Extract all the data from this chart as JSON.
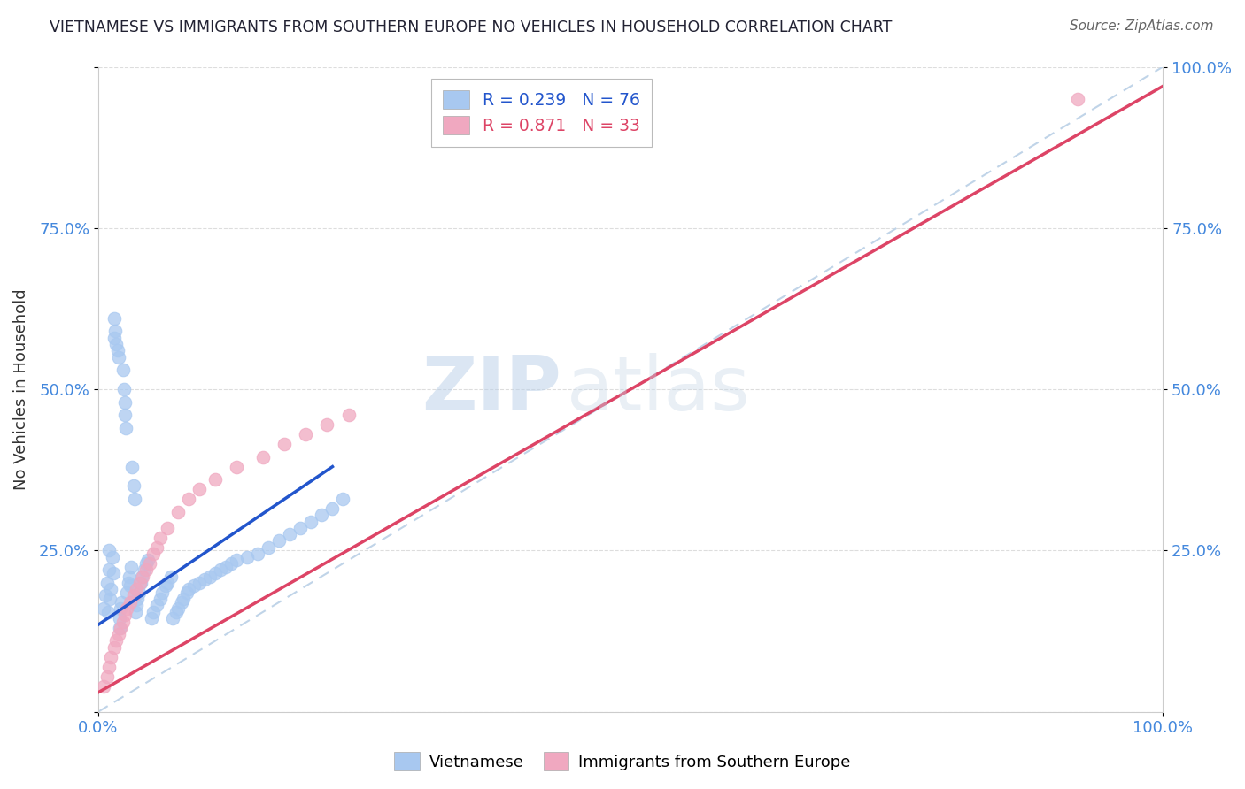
{
  "title": "VIETNAMESE VS IMMIGRANTS FROM SOUTHERN EUROPE NO VEHICLES IN HOUSEHOLD CORRELATION CHART",
  "source": "Source: ZipAtlas.com",
  "ylabel": "No Vehicles in Household",
  "xlim": [
    0,
    1.0
  ],
  "ylim": [
    0,
    1.0
  ],
  "watermark_text": "ZIP",
  "watermark_text2": "atlas",
  "series1_color": "#a8c8f0",
  "series2_color": "#f0a8c0",
  "trendline1_color": "#2255cc",
  "trendline2_color": "#dd4466",
  "diagonal_color": "#c0d4e8",
  "tick_color": "#4488dd",
  "title_color": "#222233",
  "grid_color": "#dddddd",
  "legend_box_color": "#dddddd",
  "viet_x": [
    0.005,
    0.007,
    0.008,
    0.009,
    0.01,
    0.01,
    0.011,
    0.012,
    0.013,
    0.014,
    0.015,
    0.015,
    0.016,
    0.017,
    0.018,
    0.019,
    0.02,
    0.02,
    0.021,
    0.022,
    0.023,
    0.024,
    0.025,
    0.025,
    0.026,
    0.027,
    0.028,
    0.029,
    0.03,
    0.031,
    0.032,
    0.033,
    0.034,
    0.035,
    0.036,
    0.037,
    0.038,
    0.04,
    0.041,
    0.043,
    0.045,
    0.047,
    0.05,
    0.052,
    0.055,
    0.058,
    0.06,
    0.063,
    0.065,
    0.068,
    0.07,
    0.073,
    0.075,
    0.078,
    0.08,
    0.083,
    0.085,
    0.09,
    0.095,
    0.1,
    0.105,
    0.11,
    0.115,
    0.12,
    0.125,
    0.13,
    0.14,
    0.15,
    0.16,
    0.17,
    0.18,
    0.19,
    0.2,
    0.21,
    0.22,
    0.23
  ],
  "viet_y": [
    0.16,
    0.18,
    0.2,
    0.155,
    0.22,
    0.25,
    0.175,
    0.19,
    0.24,
    0.215,
    0.58,
    0.61,
    0.59,
    0.57,
    0.56,
    0.55,
    0.13,
    0.145,
    0.16,
    0.17,
    0.53,
    0.5,
    0.48,
    0.46,
    0.44,
    0.185,
    0.2,
    0.21,
    0.195,
    0.225,
    0.38,
    0.35,
    0.33,
    0.155,
    0.165,
    0.175,
    0.185,
    0.2,
    0.21,
    0.22,
    0.23,
    0.235,
    0.145,
    0.155,
    0.165,
    0.175,
    0.185,
    0.195,
    0.2,
    0.21,
    0.145,
    0.155,
    0.16,
    0.17,
    0.175,
    0.185,
    0.19,
    0.195,
    0.2,
    0.205,
    0.21,
    0.215,
    0.22,
    0.225,
    0.23,
    0.235,
    0.24,
    0.245,
    0.255,
    0.265,
    0.275,
    0.285,
    0.295,
    0.305,
    0.315,
    0.33
  ],
  "immig_x": [
    0.005,
    0.008,
    0.01,
    0.012,
    0.015,
    0.017,
    0.019,
    0.021,
    0.023,
    0.025,
    0.027,
    0.03,
    0.033,
    0.036,
    0.039,
    0.042,
    0.045,
    0.048,
    0.052,
    0.055,
    0.058,
    0.065,
    0.075,
    0.085,
    0.095,
    0.11,
    0.13,
    0.155,
    0.175,
    0.195,
    0.215,
    0.235,
    0.92
  ],
  "immig_y": [
    0.04,
    0.055,
    0.07,
    0.085,
    0.1,
    0.11,
    0.12,
    0.13,
    0.14,
    0.15,
    0.16,
    0.17,
    0.18,
    0.19,
    0.2,
    0.21,
    0.22,
    0.23,
    0.245,
    0.255,
    0.27,
    0.285,
    0.31,
    0.33,
    0.345,
    0.36,
    0.38,
    0.395,
    0.415,
    0.43,
    0.445,
    0.46,
    0.95
  ],
  "trendline1_x": [
    0.0,
    0.22
  ],
  "trendline1_y": [
    0.135,
    0.38
  ],
  "trendline2_x": [
    0.0,
    1.0
  ],
  "trendline2_y": [
    0.03,
    0.97
  ]
}
